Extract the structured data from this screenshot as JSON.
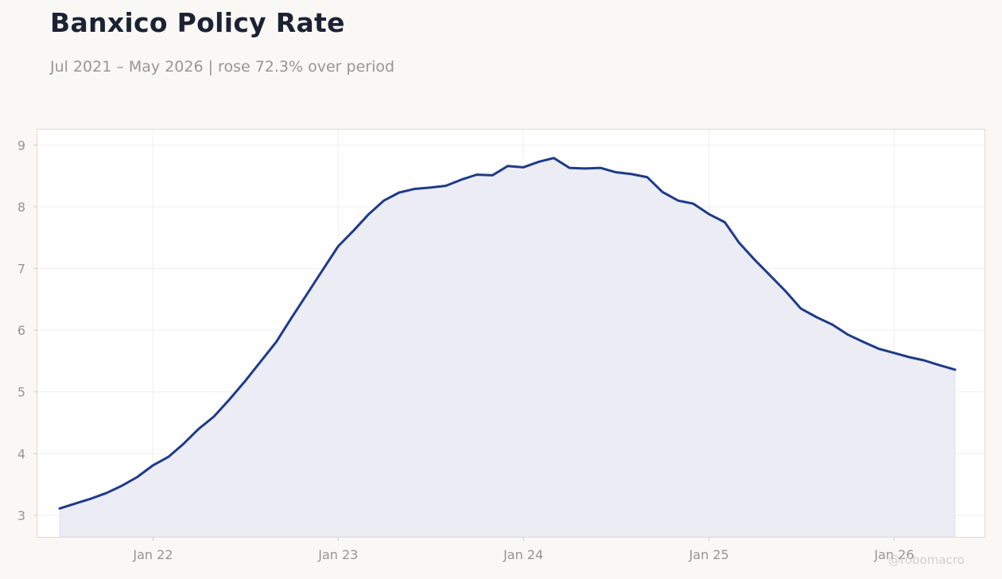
{
  "header": {
    "title": "Banxico Policy Rate",
    "subtitle": "Jul 2021 – May 2026 | rose 72.3% over period"
  },
  "watermark": "@robomacro",
  "colors": {
    "background": "#f9f8f5",
    "plot_background": "#ffffff",
    "line": "#1f3a8a",
    "area_fill": "#ecedf4",
    "grid": "#efefef"
  },
  "chart_data": {
    "type": "area",
    "title": "Banxico Policy Rate",
    "subtitle": "Jul 2021 – May 2026 | rose 72.3% over period",
    "xlabel": "",
    "ylabel": "",
    "grid": true,
    "ylim": [
      2.65,
      9.25
    ],
    "xlim": [
      "2021-05-18",
      "2026-06-28"
    ],
    "y_ticks": [
      3,
      4,
      5,
      6,
      7,
      8,
      9
    ],
    "x_ticks": [
      {
        "date": "2022-01-01",
        "label": "Jan 22"
      },
      {
        "date": "2023-01-01",
        "label": "Jan 23"
      },
      {
        "date": "2024-01-01",
        "label": "Jan 24"
      },
      {
        "date": "2025-01-01",
        "label": "Jan 25"
      },
      {
        "date": "2026-01-01",
        "label": "Jan 26"
      }
    ],
    "series": [
      {
        "x": [
          "2021-07",
          "2021-08",
          "2021-09",
          "2021-10",
          "2021-11",
          "2021-12",
          "2022-01",
          "2022-02",
          "2022-03",
          "2022-04",
          "2022-05",
          "2022-06",
          "2022-07",
          "2022-08",
          "2022-09",
          "2022-10",
          "2022-11",
          "2022-12",
          "2023-01",
          "2023-02",
          "2023-03",
          "2023-04",
          "2023-05",
          "2023-06",
          "2023-07",
          "2023-08",
          "2023-09",
          "2023-10",
          "2023-11",
          "2023-12",
          "2024-01",
          "2024-02",
          "2024-03",
          "2024-04",
          "2024-05",
          "2024-06",
          "2024-07",
          "2024-08",
          "2024-09",
          "2024-10",
          "2024-11",
          "2024-12",
          "2025-01",
          "2025-02",
          "2025-03",
          "2025-04",
          "2025-05",
          "2025-06",
          "2025-07",
          "2025-08",
          "2025-09",
          "2025-10",
          "2025-11",
          "2025-12",
          "2026-01",
          "2026-02",
          "2026-03",
          "2026-04",
          "2026-05"
        ],
        "values": [
          3.11,
          3.19,
          3.27,
          3.36,
          3.48,
          3.62,
          3.81,
          3.95,
          4.15,
          4.4,
          4.6,
          4.88,
          5.17,
          5.49,
          5.81,
          6.2,
          6.59,
          6.97,
          7.36,
          7.62,
          7.87,
          8.1,
          8.23,
          8.29,
          8.31,
          8.34,
          8.44,
          8.52,
          8.51,
          8.66,
          8.64,
          8.73,
          8.79,
          8.63,
          8.62,
          8.63,
          8.56,
          8.53,
          8.48,
          8.24,
          8.1,
          8.05,
          7.88,
          7.75,
          7.42,
          7.14,
          6.89,
          6.63,
          6.35,
          6.21,
          6.09,
          5.93,
          5.81,
          5.7,
          5.63,
          5.56,
          5.51,
          5.43,
          5.36
        ]
      }
    ]
  }
}
